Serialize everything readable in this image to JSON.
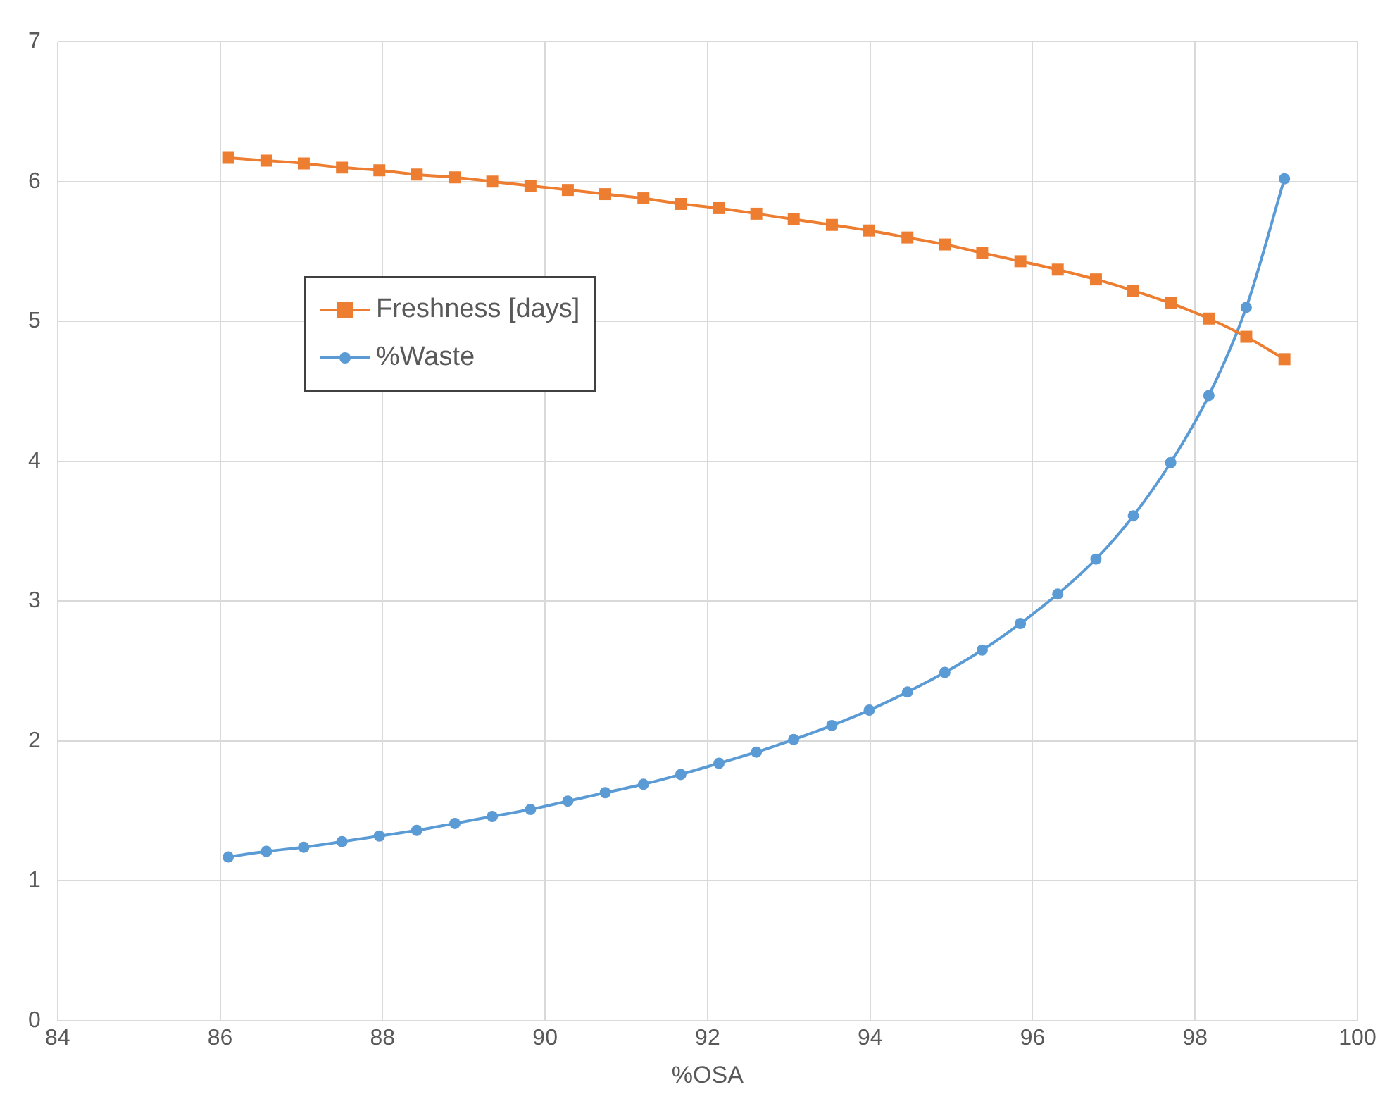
{
  "chart_data": {
    "type": "line",
    "xlabel": "%OSA",
    "x": [
      86.1,
      86.57,
      87.03,
      87.5,
      87.96,
      88.42,
      88.89,
      89.35,
      89.82,
      90.28,
      90.74,
      91.21,
      91.67,
      92.14,
      92.6,
      93.06,
      93.53,
      93.99,
      94.46,
      94.92,
      95.38,
      95.85,
      96.31,
      96.78,
      97.24,
      97.7,
      98.17,
      98.63,
      99.1
    ],
    "series": [
      {
        "name": "Freshness [days]",
        "color": "#ed7d31",
        "marker": "square",
        "values": [
          6.17,
          6.15,
          6.13,
          6.1,
          6.08,
          6.05,
          6.03,
          6.0,
          5.97,
          5.94,
          5.91,
          5.88,
          5.84,
          5.81,
          5.77,
          5.73,
          5.69,
          5.65,
          5.6,
          5.55,
          5.49,
          5.43,
          5.37,
          5.3,
          5.22,
          5.13,
          5.02,
          4.89,
          4.73
        ]
      },
      {
        "name": "%Waste",
        "color": "#5b9bd5",
        "marker": "circle",
        "values": [
          1.17,
          1.21,
          1.24,
          1.28,
          1.32,
          1.36,
          1.41,
          1.46,
          1.51,
          1.57,
          1.63,
          1.69,
          1.76,
          1.84,
          1.92,
          2.01,
          2.11,
          2.22,
          2.35,
          2.49,
          2.65,
          2.84,
          3.05,
          3.3,
          3.61,
          3.99,
          4.47,
          5.1,
          6.02
        ]
      }
    ],
    "xlim": [
      84,
      100
    ],
    "xticks": [
      84,
      86,
      88,
      90,
      92,
      94,
      96,
      98,
      100
    ],
    "ylim": [
      0,
      7
    ],
    "yticks": [
      0,
      1,
      2,
      3,
      4,
      5,
      6,
      7
    ],
    "grid": true,
    "legend": "left"
  }
}
